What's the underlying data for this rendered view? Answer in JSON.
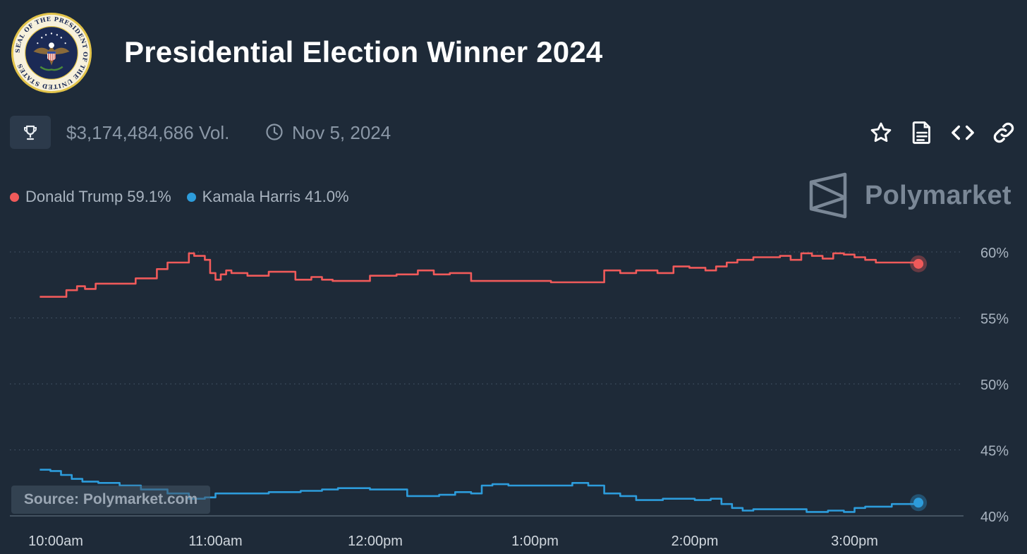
{
  "header": {
    "title": "Presidential Election Winner 2024",
    "seal_text": "SEAL OF THE PRESIDENT OF THE UNITED STATES"
  },
  "meta": {
    "volume": "$3,174,484,686 Vol.",
    "date": "Nov 5, 2024"
  },
  "brand": {
    "name": "Polymarket"
  },
  "source": "Source: Polymarket.com",
  "icons": {
    "trophy": "trophy-icon",
    "clock": "clock-icon",
    "star": "star-icon",
    "document": "document-icon",
    "embed": "code-icon",
    "link": "link-icon"
  },
  "colors": {
    "background": "#1e2a38",
    "trump": "#f05a5a",
    "harris": "#2d9cdb"
  },
  "chart_data": {
    "type": "line",
    "title": "",
    "xlabel": "",
    "ylabel": "",
    "ylim": [
      40,
      60
    ],
    "y_ticks": [
      {
        "value": 60,
        "label": "60%"
      },
      {
        "value": 55,
        "label": "55%"
      },
      {
        "value": 50,
        "label": "50%"
      },
      {
        "value": 45,
        "label": "45%"
      },
      {
        "value": 40,
        "label": "40%"
      }
    ],
    "x_ticks": [
      {
        "t": 0,
        "label": "10:00am"
      },
      {
        "t": 60,
        "label": "11:00am"
      },
      {
        "t": 120,
        "label": "12:00pm"
      },
      {
        "t": 180,
        "label": "1:00pm"
      },
      {
        "t": 240,
        "label": "2:00pm"
      },
      {
        "t": 300,
        "label": "3:00pm"
      }
    ],
    "grid": true,
    "legend_position": "top-left",
    "series": [
      {
        "name": "Donald Trump",
        "legend_label": "Donald Trump 59.1%",
        "color": "#f05a5a",
        "x": [
          -6,
          -1,
          4,
          8,
          11,
          15,
          22,
          30,
          38,
          42,
          46,
          50,
          52,
          56,
          58,
          60,
          62,
          64,
          66,
          72,
          80,
          90,
          96,
          100,
          104,
          110,
          118,
          128,
          136,
          142,
          148,
          152,
          156,
          160,
          166,
          174,
          180,
          186,
          194,
          200,
          206,
          212,
          218,
          226,
          232,
          236,
          238,
          240,
          244,
          248,
          252,
          256,
          262,
          266,
          272,
          276,
          280,
          284,
          288,
          292,
          296,
          300,
          304,
          308,
          316,
          324
        ],
        "y": [
          56.6,
          56.6,
          57.1,
          57.4,
          57.2,
          57.6,
          57.6,
          58.0,
          58.7,
          59.2,
          59.2,
          59.9,
          59.7,
          59.4,
          58.4,
          57.9,
          58.3,
          58.6,
          58.4,
          58.2,
          58.5,
          57.9,
          58.1,
          57.9,
          57.8,
          57.8,
          58.2,
          58.3,
          58.6,
          58.3,
          58.4,
          58.4,
          57.8,
          57.8,
          57.8,
          57.8,
          57.8,
          57.7,
          57.7,
          57.7,
          58.6,
          58.4,
          58.6,
          58.4,
          58.9,
          58.9,
          58.8,
          58.8,
          58.6,
          58.9,
          59.2,
          59.4,
          59.6,
          59.6,
          59.7,
          59.4,
          59.9,
          59.7,
          59.5,
          59.9,
          59.8,
          59.6,
          59.4,
          59.2,
          59.2,
          59.1
        ]
      },
      {
        "name": "Kamala Harris",
        "legend_label": "Kamala Harris 41.0%",
        "color": "#2d9cdb",
        "x": [
          -6,
          -2,
          2,
          6,
          10,
          16,
          24,
          32,
          42,
          50,
          56,
          60,
          64,
          70,
          80,
          92,
          100,
          106,
          118,
          126,
          132,
          138,
          144,
          150,
          156,
          160,
          164,
          170,
          176,
          180,
          186,
          194,
          200,
          206,
          212,
          216,
          218,
          222,
          228,
          234,
          240,
          246,
          250,
          254,
          258,
          262,
          268,
          274,
          278,
          282,
          286,
          290,
          296,
          300,
          304,
          310,
          314,
          324
        ],
        "y": [
          43.5,
          43.4,
          43.1,
          42.8,
          42.6,
          42.5,
          42.3,
          42.0,
          41.7,
          41.3,
          41.4,
          41.7,
          41.7,
          41.7,
          41.8,
          41.9,
          42.0,
          42.1,
          42.0,
          42.0,
          41.5,
          41.5,
          41.6,
          41.8,
          41.7,
          42.3,
          42.4,
          42.3,
          42.3,
          42.3,
          42.3,
          42.5,
          42.3,
          41.7,
          41.5,
          41.5,
          41.2,
          41.2,
          41.3,
          41.3,
          41.2,
          41.3,
          40.9,
          40.6,
          40.4,
          40.5,
          40.5,
          40.5,
          40.5,
          40.3,
          40.3,
          40.4,
          40.3,
          40.6,
          40.7,
          40.7,
          40.9,
          41.0
        ]
      }
    ]
  }
}
